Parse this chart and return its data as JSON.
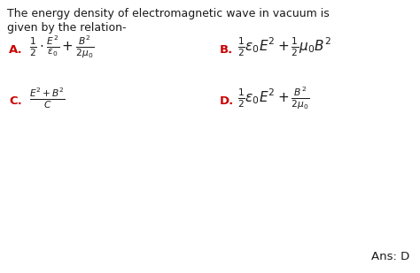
{
  "title_line1": "The energy density of electromagnetic wave in vacuum is",
  "title_line2": "given by the relation-",
  "background_color": "#ffffff",
  "text_color": "#1a1a1a",
  "label_color": "#cc0000",
  "ans_text": "Ans: D",
  "figwidth": 4.74,
  "figheight": 3.09,
  "dpi": 100,
  "title_fs": 9.0,
  "label_fs": 9.5,
  "formula_fs": 9.5
}
